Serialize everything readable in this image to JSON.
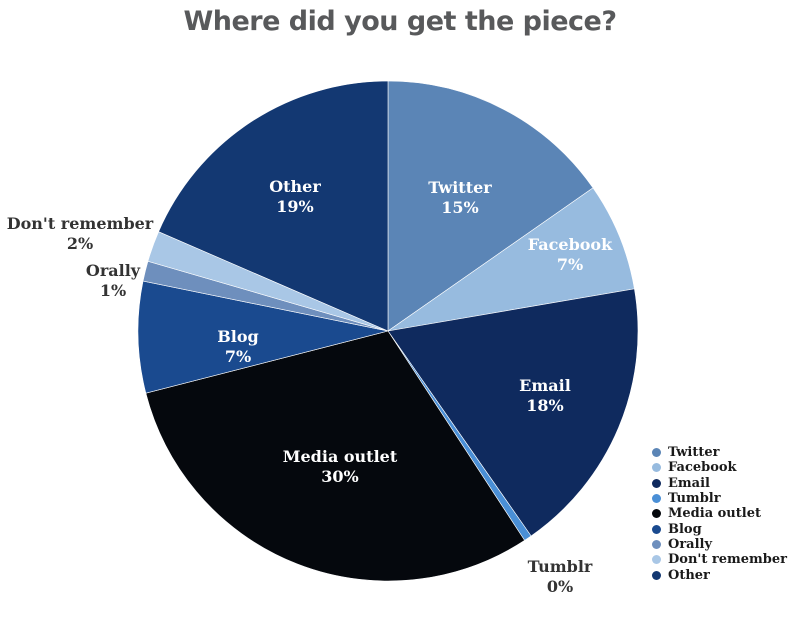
{
  "chart_data": {
    "type": "pie",
    "title": "Where did you get the piece?",
    "legend_position": "bottom-right",
    "slices": [
      {
        "label": "Twitter",
        "pct_label": "15%",
        "value": 15.3,
        "color": "#5b85b6"
      },
      {
        "label": "Facebook",
        "pct_label": "7%",
        "value": 7.0,
        "color": "#97bbdf"
      },
      {
        "label": "Email",
        "pct_label": "18%",
        "value": 18.0,
        "color": "#0f2a5e"
      },
      {
        "label": "Tumblr",
        "pct_label": "0%",
        "value": 0.5,
        "color": "#4a8fd6"
      },
      {
        "label": "Media outlet",
        "pct_label": "30%",
        "value": 30.2,
        "color": "#05080d"
      },
      {
        "label": "Blog",
        "pct_label": "7%",
        "value": 7.2,
        "color": "#1a4a8f"
      },
      {
        "label": "Orally",
        "pct_label": "1%",
        "value": 1.3,
        "color": "#6e8fbd"
      },
      {
        "label": "Don't remember",
        "pct_label": "2%",
        "value": 2.0,
        "color": "#a9c7e6"
      },
      {
        "label": "Other",
        "pct_label": "19%",
        "value": 18.5,
        "color": "#133872"
      }
    ]
  },
  "legend": [
    "Twitter",
    "Facebook",
    "Email",
    "Tumblr",
    "Media outlet",
    "Blog",
    "Orally",
    "Don't remember",
    "Other"
  ]
}
